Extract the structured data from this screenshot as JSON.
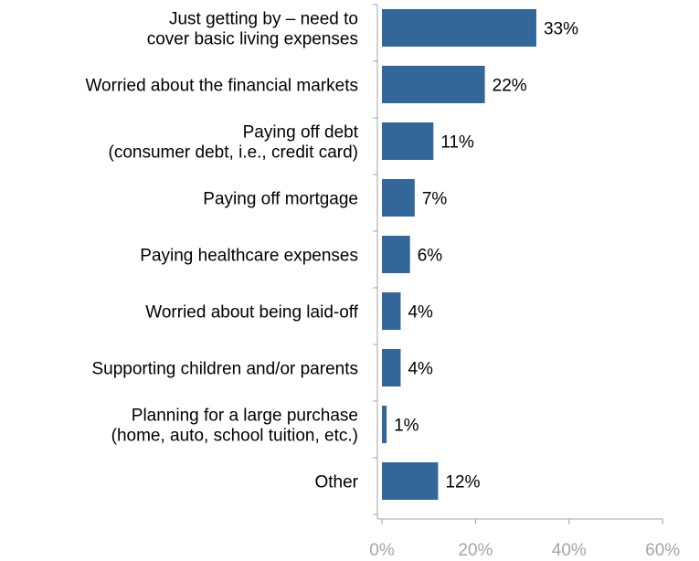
{
  "chart_data": {
    "type": "bar",
    "orientation": "horizontal",
    "title": "",
    "xlabel": "",
    "ylabel": "",
    "categories": [
      [
        "Just getting by – need to",
        "cover basic living expenses"
      ],
      [
        "Worried about the financial markets"
      ],
      [
        "Paying off debt",
        "(consumer debt, i.e., credit card)"
      ],
      [
        "Paying off mortgage"
      ],
      [
        "Paying healthcare expenses"
      ],
      [
        "Worried about being laid-off"
      ],
      [
        "Supporting children and/or parents"
      ],
      [
        "Planning for a large purchase",
        "(home, auto, school tuition, etc.)"
      ],
      [
        "Other"
      ]
    ],
    "values": [
      33,
      22,
      11,
      7,
      6,
      4,
      4,
      1,
      12
    ],
    "value_labels": [
      "33%",
      "22%",
      "11%",
      "7%",
      "6%",
      "4%",
      "4%",
      "1%",
      "12%"
    ],
    "xlim": [
      0,
      60
    ],
    "x_ticks": [
      0,
      20,
      40,
      60
    ],
    "x_tick_labels": [
      "0%",
      "20%",
      "40%",
      "60%"
    ],
    "grid": false,
    "legend": "none",
    "colors": {
      "bar": "#336699",
      "axis": "#a6a6a6",
      "tick_text": "#a6a6a6",
      "label_text": "#000000"
    }
  }
}
